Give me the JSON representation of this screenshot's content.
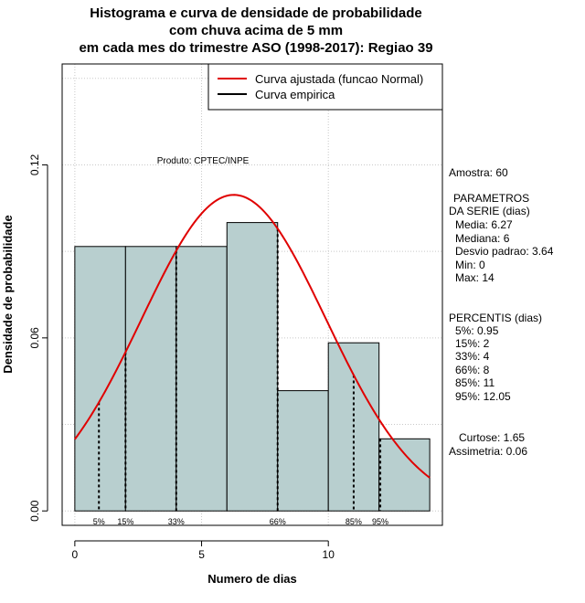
{
  "title_lines": [
    "Histograma e curva de densidade de probabilidade",
    "com chuva acima de 5 mm",
    "em cada mes do trimestre ASO (1998-2017): Regiao 39"
  ],
  "credit": "Produto: CPTEC/INPE",
  "legend": {
    "fitted": "Curva ajustada (funcao Normal)",
    "empirical": "Curva empirica"
  },
  "stats": {
    "sample": "Amostra: 60",
    "params_header": "PARAMETROS",
    "params_sub": "DA SERIE (dias)",
    "mean": "Media: 6.27",
    "median": "Mediana: 6",
    "sd": "Desvio padrao: 3.64",
    "min": "Min: 0",
    "max": "Max: 14",
    "percentiles_header": "PERCENTIS (dias)",
    "p5": "5%: 0.95",
    "p15": "15%: 2",
    "p33": "33%: 4",
    "p66": "66%: 8",
    "p85": "85%: 11",
    "p95": "95%: 12.05",
    "kurtosis": "Curtose: 1.65",
    "skewness": "Assimetria: 0.06"
  },
  "chart_data": {
    "type": "bar",
    "title": "Histograma e curva de densidade de probabilidade com chuva acima de 5 mm em cada mes do trimestre ASO (1998-2017): Regiao 39",
    "xlabel": "Numero de dias",
    "ylabel": "Densidade de probabilidade",
    "xlim": [
      -0.5,
      14.5
    ],
    "ylim": [
      -0.005,
      0.155
    ],
    "xticks": [
      0,
      5,
      10
    ],
    "yticks": [
      0.0,
      0.06,
      0.12
    ],
    "ytick_labels": [
      "0.00",
      "0.06",
      "0.12"
    ],
    "grid": true,
    "bins": [
      {
        "from": 0,
        "to": 2,
        "density": 0.0917
      },
      {
        "from": 2,
        "to": 4,
        "density": 0.0917
      },
      {
        "from": 4,
        "to": 6,
        "density": 0.0917
      },
      {
        "from": 6,
        "to": 8,
        "density": 0.1
      },
      {
        "from": 8,
        "to": 10,
        "density": 0.0417
      },
      {
        "from": 10,
        "to": 12,
        "density": 0.0583
      },
      {
        "from": 12,
        "to": 14,
        "density": 0.025
      }
    ],
    "normal_fit": {
      "mean": 6.27,
      "sd": 3.64
    },
    "percentiles": [
      {
        "label": "5%",
        "x": 0.95
      },
      {
        "label": "15%",
        "x": 2
      },
      {
        "label": "33%",
        "x": 4
      },
      {
        "label": "66%",
        "x": 8
      },
      {
        "label": "85%",
        "x": 11
      },
      {
        "label": "95%",
        "x": 12.05
      }
    ],
    "colors": {
      "bar_fill": "#b8cfcf",
      "fit_line": "#e00000",
      "grid": "#c8c8c8"
    }
  }
}
